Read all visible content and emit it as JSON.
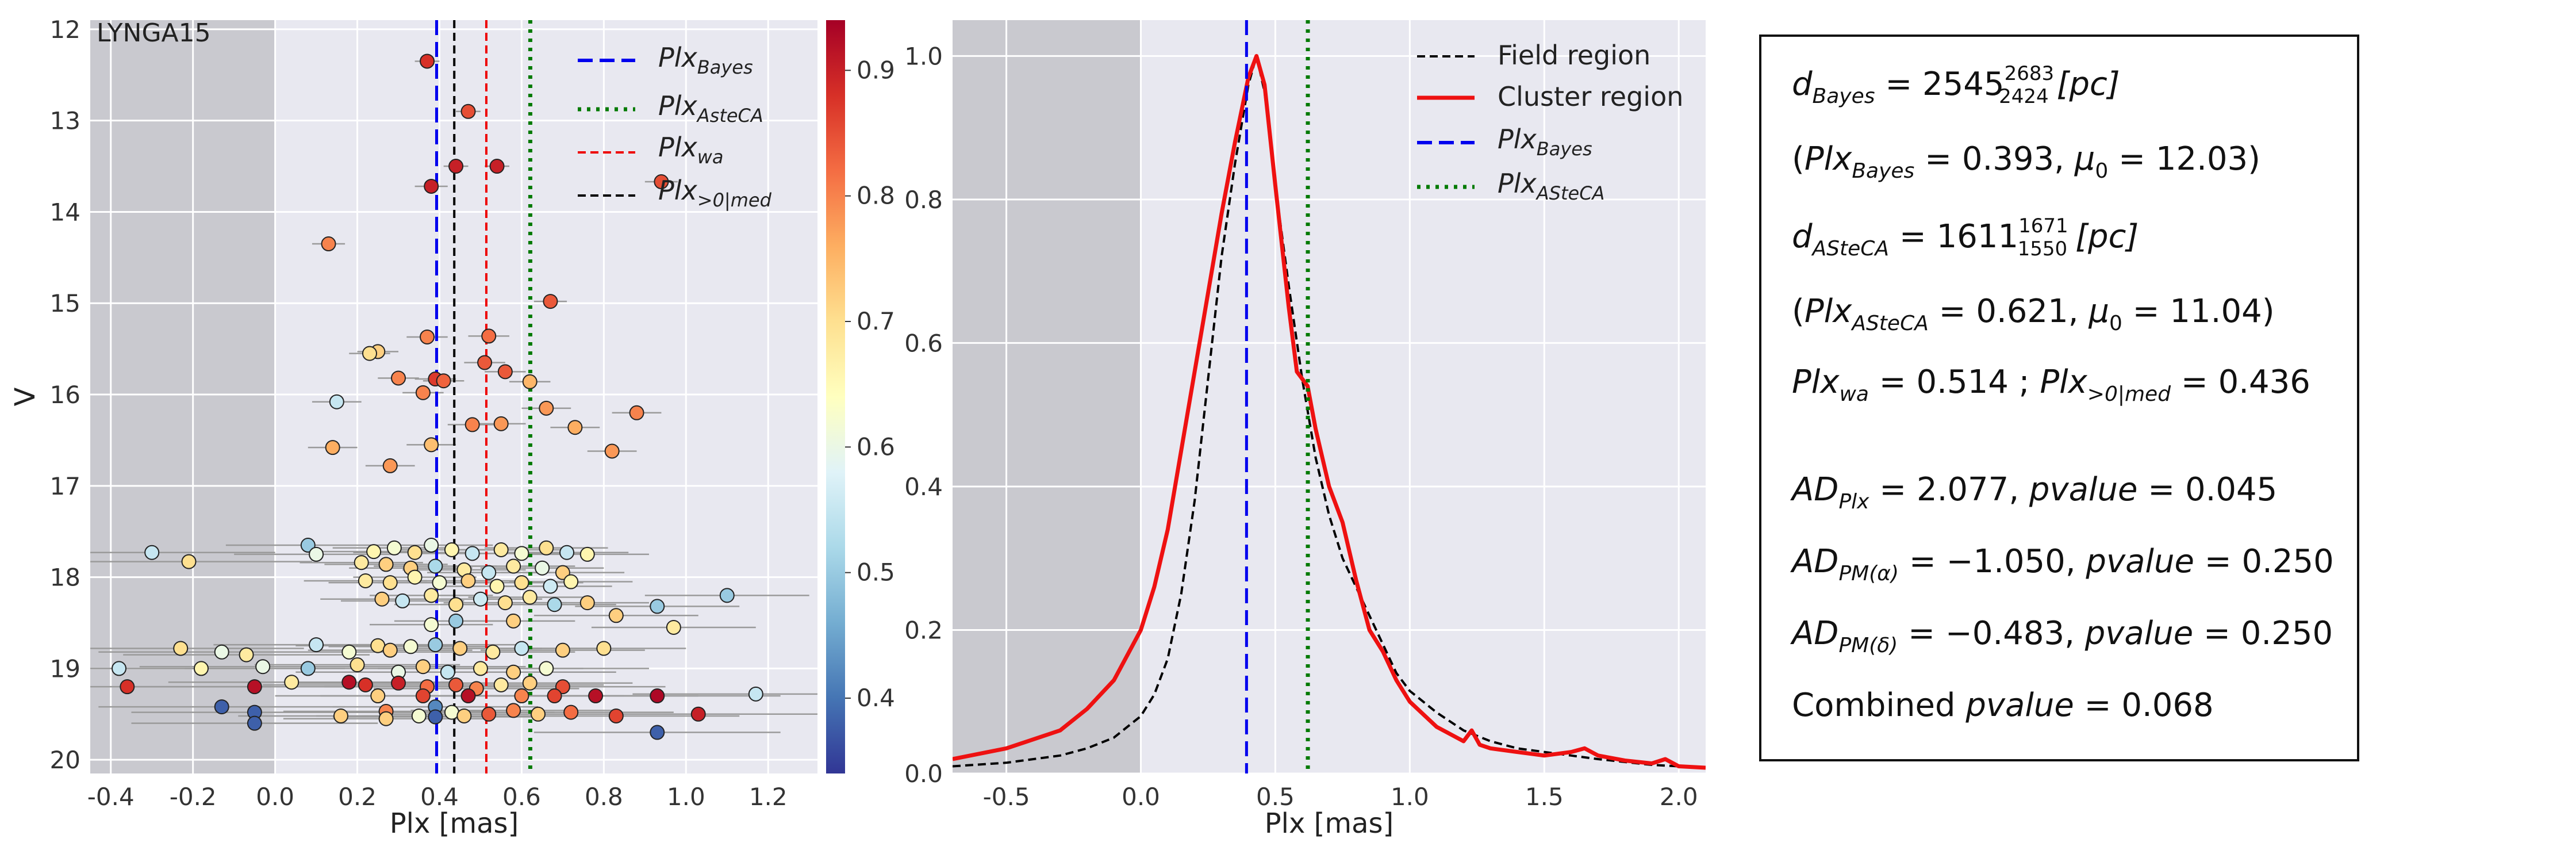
{
  "colors": {
    "panel_bg": "#e8e8f0",
    "grid": "#ffffff",
    "shade": "#c9c9cf",
    "bayes": "#0000ee",
    "asteca": "#007a00",
    "wa": "#ee0000",
    "med": "#000000",
    "field": "#000000",
    "cluster": "#ee1111",
    "errorbar": "#9a9a9a"
  },
  "chart_data": [
    {
      "type": "scatter",
      "panel_label": "LYNGA15",
      "xlabel": "Plx [mas]",
      "ylabel": "V",
      "xlim": [
        -0.45,
        1.32
      ],
      "ylim": [
        20.15,
        11.9
      ],
      "y_inverted": true,
      "shaded_region": [
        -0.45,
        0.0
      ],
      "x_ticks": [
        "-0.4",
        "-0.2",
        "0.0",
        "0.2",
        "0.4",
        "0.6",
        "0.8",
        "1.0",
        "1.2"
      ],
      "x_tick_values": [
        -0.4,
        -0.2,
        0.0,
        0.2,
        0.4,
        0.6,
        0.8,
        1.0,
        1.2
      ],
      "y_ticks": [
        "12",
        "13",
        "14",
        "15",
        "16",
        "17",
        "18",
        "19",
        "20"
      ],
      "y_tick_values": [
        12,
        13,
        14,
        15,
        16,
        17,
        18,
        19,
        20
      ],
      "colorbar": {
        "cmap": "RdYlBu_r",
        "range": [
          0.34,
          0.94
        ],
        "ticks": [
          "0.4",
          "0.5",
          "0.6",
          "0.7",
          "0.8",
          "0.9"
        ],
        "tick_values": [
          0.4,
          0.5,
          0.6,
          0.7,
          0.8,
          0.9
        ]
      },
      "vlines": [
        {
          "label_base": "Plx",
          "label_sub": "Bayes",
          "x": 0.393,
          "style": "dashed",
          "color": "#0000ee"
        },
        {
          "label_base": "Plx",
          "label_sub": "AsteCA",
          "x": 0.621,
          "style": "dotted",
          "color": "#007a00"
        },
        {
          "label_base": "Plx",
          "label_sub": "wa",
          "x": 0.514,
          "style": "dashed-thin",
          "color": "#ee0000"
        },
        {
          "label_base": "Plx",
          "label_sub": ">0|med",
          "x": 0.436,
          "style": "dashed-thin",
          "color": "#000000"
        }
      ],
      "points": [
        [
          0.37,
          12.35,
          0.88,
          0.03
        ],
        [
          0.47,
          12.9,
          0.85,
          0.03
        ],
        [
          0.44,
          13.5,
          0.9,
          0.03
        ],
        [
          0.54,
          13.5,
          0.9,
          0.03
        ],
        [
          0.38,
          13.72,
          0.9,
          0.04
        ],
        [
          0.94,
          13.67,
          0.85,
          0.04
        ],
        [
          0.13,
          14.35,
          0.8,
          0.04
        ],
        [
          0.67,
          14.98,
          0.84,
          0.04
        ],
        [
          0.37,
          15.37,
          0.8,
          0.05
        ],
        [
          0.52,
          15.36,
          0.82,
          0.05
        ],
        [
          0.25,
          15.53,
          0.72,
          0.05
        ],
        [
          0.23,
          15.55,
          0.7,
          0.05
        ],
        [
          0.51,
          15.65,
          0.84,
          0.05
        ],
        [
          0.39,
          15.83,
          0.87,
          0.05
        ],
        [
          0.41,
          15.85,
          0.83,
          0.05
        ],
        [
          0.56,
          15.75,
          0.84,
          0.05
        ],
        [
          0.3,
          15.82,
          0.8,
          0.05
        ],
        [
          0.36,
          15.98,
          0.8,
          0.05
        ],
        [
          0.62,
          15.86,
          0.75,
          0.05
        ],
        [
          0.15,
          16.08,
          0.55,
          0.06
        ],
        [
          0.66,
          16.15,
          0.78,
          0.06
        ],
        [
          0.88,
          16.2,
          0.8,
          0.06
        ],
        [
          0.48,
          16.33,
          0.8,
          0.06
        ],
        [
          0.55,
          16.32,
          0.78,
          0.06
        ],
        [
          0.73,
          16.36,
          0.76,
          0.06
        ],
        [
          0.14,
          16.58,
          0.76,
          0.06
        ],
        [
          0.38,
          16.55,
          0.74,
          0.06
        ],
        [
          0.82,
          16.62,
          0.78,
          0.06
        ],
        [
          0.28,
          16.78,
          0.78,
          0.06
        ],
        [
          -0.3,
          17.73,
          0.55,
          0.3
        ],
        [
          -0.21,
          17.83,
          0.7,
          0.3
        ],
        [
          0.08,
          17.65,
          0.5,
          0.2
        ],
        [
          0.1,
          17.75,
          0.6,
          0.2
        ],
        [
          0.24,
          17.72,
          0.66,
          0.15
        ],
        [
          0.29,
          17.68,
          0.62,
          0.15
        ],
        [
          0.34,
          17.73,
          0.7,
          0.15
        ],
        [
          0.38,
          17.65,
          0.6,
          0.15
        ],
        [
          0.43,
          17.7,
          0.66,
          0.15
        ],
        [
          0.48,
          17.74,
          0.55,
          0.15
        ],
        [
          0.55,
          17.7,
          0.68,
          0.15
        ],
        [
          0.6,
          17.74,
          0.62,
          0.15
        ],
        [
          0.66,
          17.68,
          0.7,
          0.15
        ],
        [
          0.71,
          17.73,
          0.55,
          0.15
        ],
        [
          0.76,
          17.75,
          0.66,
          0.15
        ],
        [
          0.21,
          17.84,
          0.68,
          0.15
        ],
        [
          0.27,
          17.86,
          0.72,
          0.15
        ],
        [
          0.33,
          17.9,
          0.72,
          0.15
        ],
        [
          0.39,
          17.88,
          0.52,
          0.15
        ],
        [
          0.46,
          17.92,
          0.68,
          0.15
        ],
        [
          0.52,
          17.95,
          0.55,
          0.15
        ],
        [
          0.58,
          17.88,
          0.68,
          0.15
        ],
        [
          0.65,
          17.9,
          0.6,
          0.15
        ],
        [
          0.7,
          17.95,
          0.72,
          0.15
        ],
        [
          0.22,
          18.04,
          0.68,
          0.15
        ],
        [
          0.28,
          18.06,
          0.7,
          0.15
        ],
        [
          0.34,
          18.0,
          0.66,
          0.15
        ],
        [
          0.4,
          18.06,
          0.62,
          0.15
        ],
        [
          0.47,
          18.04,
          0.72,
          0.15
        ],
        [
          0.54,
          18.1,
          0.66,
          0.15
        ],
        [
          0.6,
          18.06,
          0.7,
          0.15
        ],
        [
          0.67,
          18.1,
          0.56,
          0.15
        ],
        [
          0.72,
          18.05,
          0.66,
          0.15
        ],
        [
          1.1,
          18.2,
          0.5,
          0.2
        ],
        [
          0.93,
          18.32,
          0.5,
          0.2
        ],
        [
          0.97,
          18.55,
          0.68,
          0.2
        ],
        [
          0.26,
          18.24,
          0.72,
          0.15
        ],
        [
          0.31,
          18.26,
          0.55,
          0.15
        ],
        [
          0.38,
          18.2,
          0.68,
          0.15
        ],
        [
          0.44,
          18.3,
          0.7,
          0.15
        ],
        [
          0.5,
          18.24,
          0.56,
          0.15
        ],
        [
          0.56,
          18.28,
          0.7,
          0.15
        ],
        [
          0.62,
          18.22,
          0.68,
          0.15
        ],
        [
          0.68,
          18.3,
          0.52,
          0.15
        ],
        [
          0.76,
          18.28,
          0.72,
          0.15
        ],
        [
          0.83,
          18.42,
          0.72,
          0.2
        ],
        [
          0.44,
          18.48,
          0.5,
          0.15
        ],
        [
          0.58,
          18.48,
          0.72,
          0.15
        ],
        [
          0.38,
          18.52,
          0.62,
          0.15
        ],
        [
          -0.23,
          18.78,
          0.7,
          0.3
        ],
        [
          -0.13,
          18.82,
          0.6,
          0.3
        ],
        [
          -0.07,
          18.85,
          0.68,
          0.3
        ],
        [
          0.1,
          18.74,
          0.55,
          0.25
        ],
        [
          0.18,
          18.82,
          0.62,
          0.25
        ],
        [
          0.25,
          18.75,
          0.7,
          0.2
        ],
        [
          0.28,
          18.8,
          0.72,
          0.2
        ],
        [
          0.33,
          18.76,
          0.62,
          0.2
        ],
        [
          0.39,
          18.74,
          0.5,
          0.2
        ],
        [
          0.45,
          18.78,
          0.72,
          0.2
        ],
        [
          0.53,
          18.82,
          0.68,
          0.2
        ],
        [
          0.6,
          18.78,
          0.55,
          0.2
        ],
        [
          0.7,
          18.8,
          0.72,
          0.2
        ],
        [
          0.8,
          18.78,
          0.7,
          0.2
        ],
        [
          -0.38,
          19.0,
          0.55,
          0.35
        ],
        [
          -0.18,
          19.0,
          0.66,
          0.35
        ],
        [
          -0.03,
          18.98,
          0.6,
          0.3
        ],
        [
          0.08,
          19.0,
          0.5,
          0.3
        ],
        [
          0.2,
          18.96,
          0.7,
          0.25
        ],
        [
          0.3,
          19.04,
          0.6,
          0.25
        ],
        [
          0.36,
          18.98,
          0.72,
          0.25
        ],
        [
          0.42,
          19.04,
          0.55,
          0.25
        ],
        [
          0.5,
          19.0,
          0.68,
          0.25
        ],
        [
          0.58,
          19.04,
          0.72,
          0.25
        ],
        [
          0.66,
          19.0,
          0.62,
          0.25
        ],
        [
          -0.36,
          19.2,
          0.88,
          0.35
        ],
        [
          -0.05,
          19.2,
          0.92,
          0.3
        ],
        [
          0.04,
          19.15,
          0.68,
          0.3
        ],
        [
          0.18,
          19.15,
          0.92,
          0.25
        ],
        [
          0.22,
          19.18,
          0.88,
          0.25
        ],
        [
          0.3,
          19.16,
          0.9,
          0.25
        ],
        [
          0.37,
          19.2,
          0.82,
          0.25
        ],
        [
          0.44,
          19.18,
          0.84,
          0.25
        ],
        [
          0.49,
          19.22,
          0.8,
          0.25
        ],
        [
          0.55,
          19.18,
          0.68,
          0.25
        ],
        [
          0.62,
          19.16,
          0.72,
          0.25
        ],
        [
          0.7,
          19.2,
          0.85,
          0.25
        ],
        [
          0.25,
          19.3,
          0.72,
          0.25
        ],
        [
          0.36,
          19.3,
          0.86,
          0.25
        ],
        [
          0.47,
          19.3,
          0.92,
          0.25
        ],
        [
          0.6,
          19.3,
          0.8,
          0.25
        ],
        [
          0.68,
          19.3,
          0.86,
          0.25
        ],
        [
          0.78,
          19.3,
          0.92,
          0.25
        ],
        [
          0.93,
          19.3,
          0.93,
          0.3
        ],
        [
          1.17,
          19.28,
          0.55,
          0.3
        ],
        [
          -0.13,
          19.42,
          0.38,
          0.3
        ],
        [
          -0.05,
          19.48,
          0.38,
          0.3
        ],
        [
          0.16,
          19.52,
          0.72,
          0.25
        ],
        [
          0.27,
          19.47,
          0.8,
          0.25
        ],
        [
          0.35,
          19.52,
          0.62,
          0.25
        ],
        [
          0.39,
          19.42,
          0.42,
          0.25
        ],
        [
          0.43,
          19.48,
          0.62,
          0.25
        ],
        [
          0.52,
          19.5,
          0.84,
          0.25
        ],
        [
          0.58,
          19.46,
          0.8,
          0.25
        ],
        [
          0.64,
          19.5,
          0.72,
          0.25
        ],
        [
          0.72,
          19.48,
          0.82,
          0.25
        ],
        [
          0.83,
          19.52,
          0.86,
          0.3
        ],
        [
          1.03,
          19.5,
          0.9,
          0.3
        ],
        [
          -0.05,
          19.6,
          0.38,
          0.3
        ],
        [
          0.27,
          19.55,
          0.72,
          0.25
        ],
        [
          0.46,
          19.52,
          0.72,
          0.25
        ],
        [
          0.93,
          19.7,
          0.38,
          0.3
        ],
        [
          0.39,
          19.53,
          0.38,
          0.25
        ]
      ]
    },
    {
      "type": "line",
      "xlabel": "Plx [mas]",
      "xlim": [
        -0.7,
        2.1
      ],
      "ylim": [
        0.0,
        1.05
      ],
      "shaded_region": [
        -0.7,
        0.0
      ],
      "x_ticks": [
        "-0.5",
        "0.0",
        "0.5",
        "1.0",
        "1.5",
        "2.0"
      ],
      "x_tick_values": [
        -0.5,
        0.0,
        0.5,
        1.0,
        1.5,
        2.0
      ],
      "y_ticks": [
        "0.0",
        "0.2",
        "0.4",
        "0.6",
        "0.8",
        "1.0"
      ],
      "y_tick_values": [
        0.0,
        0.2,
        0.4,
        0.6,
        0.8,
        1.0
      ],
      "series": [
        {
          "name": "Field region",
          "style": "dashed",
          "color": "#000000",
          "x": [
            -0.7,
            -0.5,
            -0.3,
            -0.2,
            -0.1,
            0.0,
            0.05,
            0.1,
            0.15,
            0.2,
            0.25,
            0.3,
            0.35,
            0.4,
            0.43,
            0.46,
            0.5,
            0.55,
            0.6,
            0.65,
            0.7,
            0.75,
            0.8,
            0.85,
            0.9,
            0.95,
            1.0,
            1.05,
            1.1,
            1.2,
            1.3,
            1.4,
            1.5,
            1.6,
            1.7,
            1.8,
            1.9,
            2.0,
            2.1
          ],
          "y": [
            0.01,
            0.015,
            0.025,
            0.035,
            0.05,
            0.08,
            0.11,
            0.16,
            0.25,
            0.38,
            0.55,
            0.72,
            0.85,
            0.96,
            1.0,
            0.95,
            0.82,
            0.68,
            0.55,
            0.44,
            0.36,
            0.3,
            0.26,
            0.22,
            0.18,
            0.14,
            0.115,
            0.1,
            0.085,
            0.06,
            0.045,
            0.035,
            0.03,
            0.025,
            0.02,
            0.016,
            0.012,
            0.01,
            0.008
          ]
        },
        {
          "name": "Cluster region",
          "style": "solid",
          "color": "#ee1111",
          "x": [
            -0.7,
            -0.5,
            -0.3,
            -0.2,
            -0.1,
            0.0,
            0.05,
            0.1,
            0.15,
            0.2,
            0.25,
            0.3,
            0.35,
            0.4,
            0.43,
            0.46,
            0.5,
            0.55,
            0.58,
            0.62,
            0.65,
            0.7,
            0.75,
            0.8,
            0.85,
            0.9,
            0.95,
            1.0,
            1.1,
            1.2,
            1.23,
            1.26,
            1.3,
            1.4,
            1.5,
            1.6,
            1.65,
            1.7,
            1.8,
            1.9,
            1.95,
            2.0,
            2.1
          ],
          "y": [
            0.02,
            0.035,
            0.06,
            0.09,
            0.13,
            0.2,
            0.26,
            0.34,
            0.45,
            0.56,
            0.67,
            0.78,
            0.88,
            0.97,
            1.0,
            0.96,
            0.82,
            0.65,
            0.56,
            0.54,
            0.48,
            0.4,
            0.35,
            0.27,
            0.2,
            0.17,
            0.13,
            0.1,
            0.065,
            0.045,
            0.06,
            0.04,
            0.035,
            0.03,
            0.025,
            0.03,
            0.035,
            0.025,
            0.018,
            0.014,
            0.02,
            0.01,
            0.008
          ]
        },
        {
          "name": "Plx_Bayes",
          "label_base": "Plx",
          "label_sub": "Bayes",
          "style": "dashed",
          "color": "#0000ee",
          "vline_x": 0.393
        },
        {
          "name": "Plx_ASteCA",
          "label_base": "Plx",
          "label_sub": "ASteCA",
          "style": "dotted",
          "color": "#007a00",
          "vline_x": 0.621
        }
      ]
    }
  ],
  "info_box": {
    "d_bayes": {
      "sym": "d",
      "sub": "Bayes",
      "value": "2545",
      "sup": "2683",
      "low": "2424",
      "unit": "[pc]"
    },
    "bayes_detail": {
      "plx_sub": "Bayes",
      "plx_val": "0.393",
      "mu_val": "12.03"
    },
    "d_asteca": {
      "sym": "d",
      "sub": "ASteCA",
      "value": "1611",
      "sup": "1671",
      "low": "1550",
      "unit": "[pc]"
    },
    "asteca_detail": {
      "plx_sub": "ASteCA",
      "plx_val": "0.621",
      "mu_val": "11.04"
    },
    "plx_wa": {
      "sub": "wa",
      "value": "0.514"
    },
    "plx_med": {
      "sub": ">0|med",
      "value": "0.436"
    },
    "ad_plx": {
      "sub": "Plx",
      "value": "2.077",
      "pvalue": "0.045"
    },
    "ad_pma": {
      "sub": "PM(α)",
      "value": "−1.050",
      "pvalue": "0.250"
    },
    "ad_pmd": {
      "sub": "PM(δ)",
      "value": "−0.483",
      "pvalue": "0.250"
    },
    "combined": {
      "label": "Combined",
      "pvalue": "0.068"
    }
  }
}
